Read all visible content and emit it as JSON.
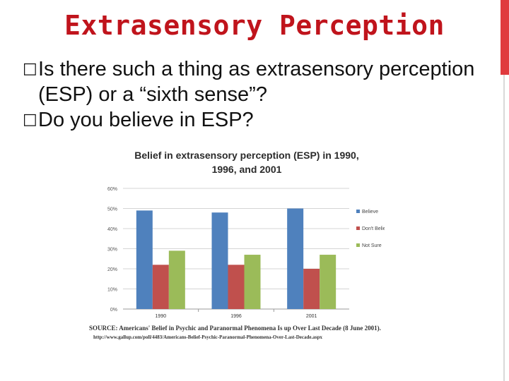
{
  "slide": {
    "title": "Extrasensory Perception",
    "bullet_symbol": "□",
    "bullets": [
      "Is there such a thing as extrasensory perception (ESP) or a “sixth sense”?",
      "Do you believe in ESP?"
    ],
    "accent_color": "#e03a3e"
  },
  "chart_data": {
    "type": "bar",
    "title": "Belief in extrasensory perception (ESP) in 1990, 1996, and 2001",
    "categories": [
      "1990",
      "1996",
      "2001"
    ],
    "series": [
      {
        "name": "Believe",
        "values": [
          49,
          48,
          50
        ],
        "color": "#4f81bd"
      },
      {
        "name": "Don't Believe",
        "values": [
          22,
          22,
          20
        ],
        "color": "#c0504d"
      },
      {
        "name": "Not Sure",
        "values": [
          29,
          27,
          27
        ],
        "color": "#9bbb59"
      }
    ],
    "y_ticks": [
      "0%",
      "10%",
      "20%",
      "30%",
      "40%",
      "50%",
      "60%"
    ],
    "ylim": [
      0,
      60
    ],
    "grid": true,
    "legend": "right",
    "source": "SOURCE: Americans' Belief in Psychic and Paranormal Phenomena Is up Over Last Decade (8 June 2001).",
    "source_url": "http://www.gallup.com/poll/4483/Americans-Belief-Psychic-Paranormal-Phenomena-Over-Last-Decade.aspx"
  }
}
